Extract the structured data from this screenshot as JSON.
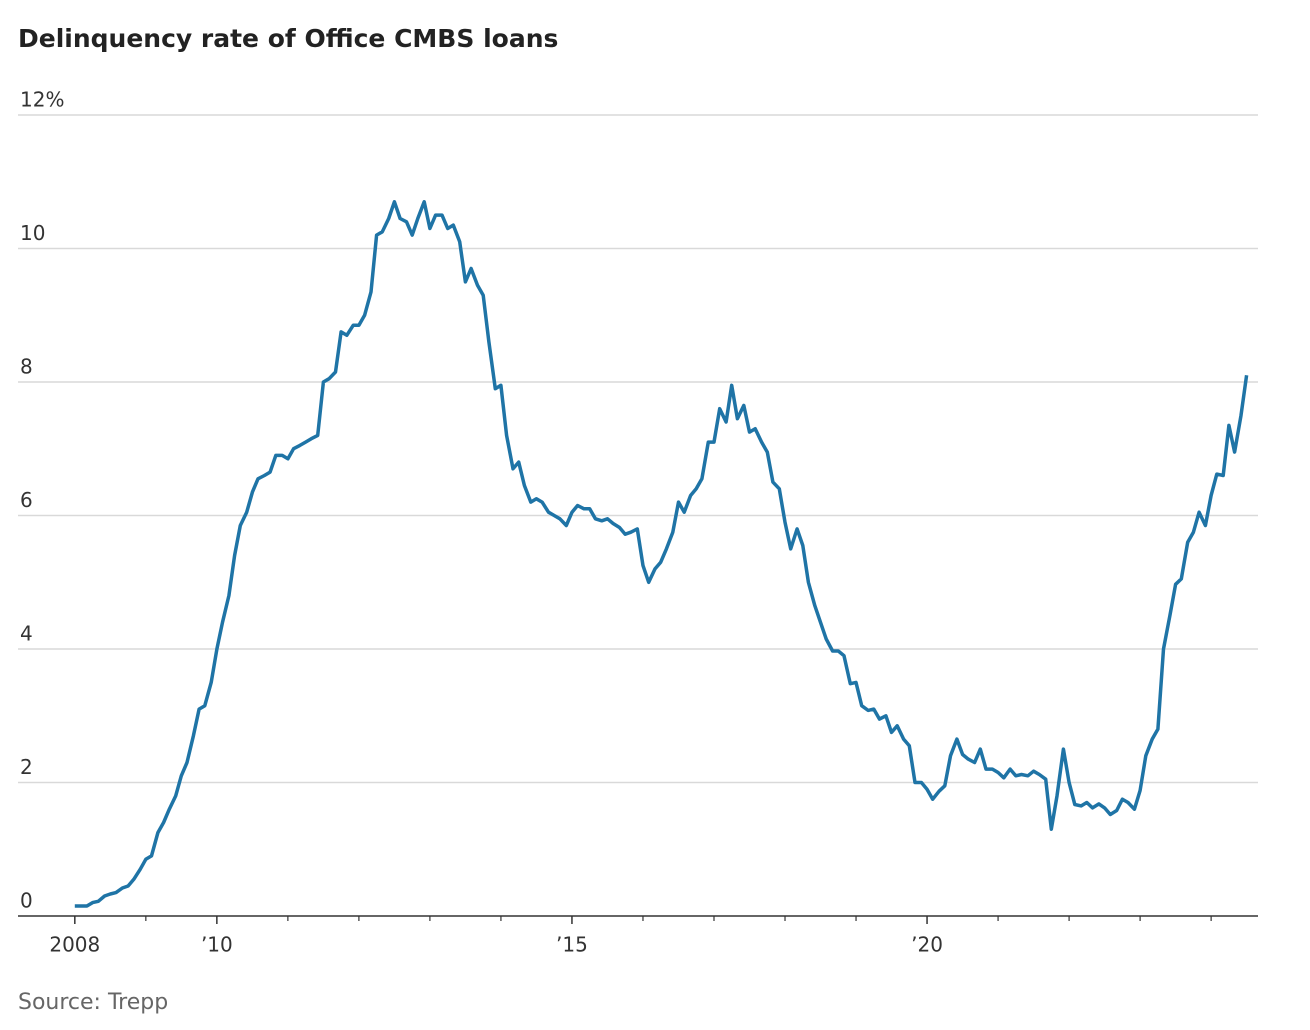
{
  "chart_data": {
    "type": "line",
    "title": "Delinquency rate of Office CMBS loans",
    "source": "Source: Trepp",
    "x": [
      2008,
      2008.08,
      2008.17,
      2008.25,
      2008.33,
      2008.42,
      2008.5,
      2008.58,
      2008.67,
      2008.75,
      2008.83,
      2008.92,
      2009,
      2009.08,
      2009.17,
      2009.25,
      2009.33,
      2009.42,
      2009.5,
      2009.58,
      2009.67,
      2009.75,
      2009.83,
      2009.92,
      2010,
      2010.08,
      2010.17,
      2010.25,
      2010.33,
      2010.42,
      2010.5,
      2010.58,
      2010.67,
      2010.75,
      2010.83,
      2010.92,
      2011,
      2011.08,
      2011.17,
      2011.25,
      2011.33,
      2011.42,
      2011.5,
      2011.58,
      2011.67,
      2011.75,
      2011.83,
      2011.92,
      2012,
      2012.08,
      2012.17,
      2012.25,
      2012.33,
      2012.42,
      2012.5,
      2012.58,
      2012.67,
      2012.75,
      2012.83,
      2012.92,
      2013,
      2013.08,
      2013.17,
      2013.25,
      2013.33,
      2013.42,
      2013.5,
      2013.58,
      2013.67,
      2013.75,
      2013.83,
      2013.92,
      2014,
      2014.08,
      2014.17,
      2014.25,
      2014.33,
      2014.42,
      2014.5,
      2014.58,
      2014.67,
      2014.75,
      2014.83,
      2014.92,
      2015,
      2015.08,
      2015.17,
      2015.25,
      2015.33,
      2015.42,
      2015.5,
      2015.58,
      2015.67,
      2015.75,
      2015.83,
      2015.92,
      2016,
      2016.08,
      2016.17,
      2016.25,
      2016.33,
      2016.42,
      2016.5,
      2016.58,
      2016.67,
      2016.75,
      2016.83,
      2016.92,
      2017,
      2017.08,
      2017.17,
      2017.25,
      2017.33,
      2017.42,
      2017.5,
      2017.58,
      2017.67,
      2017.75,
      2017.83,
      2017.92,
      2018,
      2018.08,
      2018.17,
      2018.25,
      2018.33,
      2018.42,
      2018.5,
      2018.58,
      2018.67,
      2018.75,
      2018.83,
      2018.92,
      2019,
      2019.08,
      2019.17,
      2019.25,
      2019.33,
      2019.42,
      2019.5,
      2019.58,
      2019.67,
      2019.75,
      2019.83,
      2019.92,
      2020,
      2020.08,
      2020.17,
      2020.25,
      2020.33,
      2020.42,
      2020.5,
      2020.58,
      2020.67,
      2020.75,
      2020.83,
      2020.92,
      2021,
      2021.08,
      2021.17,
      2021.25,
      2021.33,
      2021.42,
      2021.5,
      2021.58,
      2021.67,
      2021.75,
      2021.83,
      2021.92,
      2022,
      2022.08,
      2022.17,
      2022.25,
      2022.33,
      2022.42,
      2022.5,
      2022.58,
      2022.67,
      2022.75,
      2022.83,
      2022.92,
      2023,
      2023.08,
      2023.17,
      2023.25,
      2023.33,
      2023.42,
      2023.5,
      2023.58,
      2023.67,
      2023.75,
      2023.83,
      2023.92,
      2024,
      2024.08,
      2024.17,
      2024.25,
      2024.33,
      2024.42,
      2024.5
    ],
    "values": [
      0.15,
      0.15,
      0.15,
      0.2,
      0.22,
      0.3,
      0.33,
      0.35,
      0.42,
      0.45,
      0.55,
      0.7,
      0.85,
      0.9,
      1.25,
      1.4,
      1.6,
      1.8,
      2.1,
      2.3,
      2.7,
      3.1,
      3.15,
      3.5,
      4.0,
      4.4,
      4.8,
      5.4,
      5.85,
      6.05,
      6.35,
      6.55,
      6.6,
      6.65,
      6.9,
      6.9,
      6.85,
      7.0,
      7.05,
      7.1,
      7.15,
      7.2,
      8.0,
      8.05,
      8.15,
      8.75,
      8.7,
      8.85,
      8.85,
      9.0,
      9.35,
      10.2,
      10.25,
      10.45,
      10.7,
      10.45,
      10.4,
      10.2,
      10.45,
      10.7,
      10.3,
      10.5,
      10.5,
      10.3,
      10.35,
      10.1,
      9.5,
      9.7,
      9.45,
      9.3,
      8.6,
      7.9,
      7.95,
      7.2,
      6.7,
      6.8,
      6.45,
      6.2,
      6.25,
      6.2,
      6.05,
      6.0,
      5.95,
      5.85,
      6.05,
      6.15,
      6.1,
      6.1,
      5.95,
      5.92,
      5.95,
      5.88,
      5.82,
      5.72,
      5.75,
      5.8,
      5.25,
      5.0,
      5.2,
      5.3,
      5.5,
      5.75,
      6.2,
      6.05,
      6.3,
      6.4,
      6.55,
      7.1,
      7.1,
      7.6,
      7.4,
      7.95,
      7.45,
      7.65,
      7.25,
      7.3,
      7.1,
      6.95,
      6.5,
      6.4,
      5.9,
      5.5,
      5.8,
      5.55,
      5.0,
      4.65,
      4.4,
      4.15,
      3.97,
      3.97,
      3.9,
      3.48,
      3.5,
      3.15,
      3.08,
      3.1,
      2.95,
      3.0,
      2.75,
      2.85,
      2.65,
      2.55,
      2.0,
      2.0,
      1.9,
      1.75,
      1.87,
      1.95,
      2.4,
      2.65,
      2.42,
      2.35,
      2.3,
      2.5,
      2.2,
      2.2,
      2.15,
      2.07,
      2.2,
      2.1,
      2.12,
      2.1,
      2.17,
      2.12,
      2.05,
      1.3,
      1.8,
      2.5,
      2.0,
      1.67,
      1.65,
      1.7,
      1.62,
      1.68,
      1.62,
      1.52,
      1.58,
      1.75,
      1.7,
      1.6,
      1.88,
      2.4,
      2.65,
      2.8,
      4.0,
      4.5,
      4.97,
      5.05,
      5.6,
      5.75,
      6.05,
      5.85,
      6.3,
      6.62,
      6.6,
      7.35,
      6.95,
      7.5,
      8.1
    ],
    "color": "#1f74a6",
    "xlim": [
      2007.2,
      2024.66
    ],
    "xticks": [
      {
        "value": 2008,
        "label": "2008"
      },
      {
        "value": 2010,
        "label": "’10"
      },
      {
        "value": 2015,
        "label": "’15"
      },
      {
        "value": 2020,
        "label": "’20"
      }
    ],
    "xminor_ticks": [
      2009,
      2011,
      2012,
      2013,
      2014,
      2016,
      2017,
      2018,
      2019,
      2021,
      2022,
      2023,
      2024
    ],
    "ylim": [
      0,
      12
    ],
    "yticks": [
      0,
      2,
      4,
      6,
      8,
      10,
      {
        "value": 12,
        "label": "12%"
      }
    ],
    "grid": true
  }
}
